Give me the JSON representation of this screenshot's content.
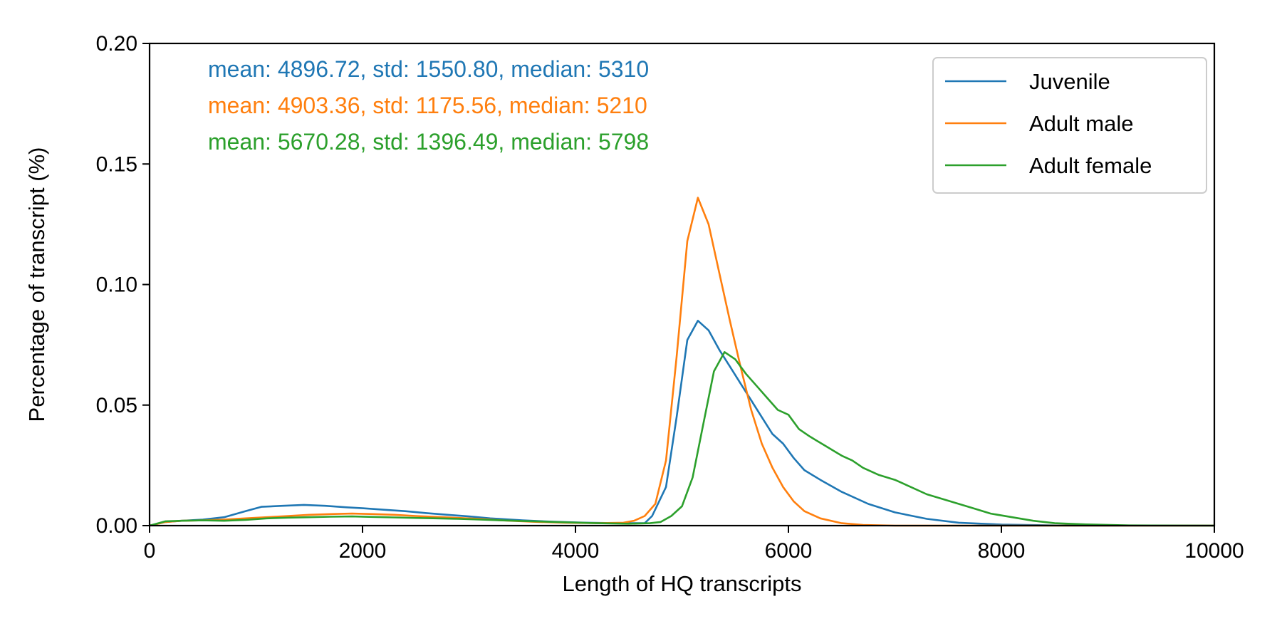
{
  "chart_data": {
    "type": "line",
    "title": "",
    "xlabel": "Length of HQ transcripts",
    "ylabel": "Percentage of transcript (%)",
    "xlim": [
      0,
      10000
    ],
    "ylim": [
      0,
      0.2
    ],
    "x_ticks": [
      0,
      2000,
      4000,
      6000,
      8000,
      10000
    ],
    "y_ticks": [
      0.0,
      0.05,
      0.1,
      0.15,
      0.2
    ],
    "x_tick_labels": [
      "0",
      "2000",
      "4000",
      "6000",
      "8000",
      "10000"
    ],
    "y_tick_labels": [
      "0.00",
      "0.05",
      "0.10",
      "0.15",
      "0.20"
    ],
    "grid": false,
    "legend_position": "top-right",
    "annotations": [
      {
        "text": "mean: 4896.72, std: 1550.80, median: 5310",
        "color": "#1f77b4"
      },
      {
        "text": "mean: 4903.36, std: 1175.56, median: 5210",
        "color": "#ff7f0e"
      },
      {
        "text": "mean: 5670.28, std: 1396.49, median: 5798",
        "color": "#2ca02c"
      }
    ],
    "series": [
      {
        "name": "Juvenile",
        "color": "#1f77b4",
        "points": [
          [
            0,
            0
          ],
          [
            150,
            0.0015
          ],
          [
            300,
            0.002
          ],
          [
            500,
            0.0025
          ],
          [
            700,
            0.0035
          ],
          [
            900,
            0.006
          ],
          [
            1050,
            0.0078
          ],
          [
            1250,
            0.0082
          ],
          [
            1450,
            0.0086
          ],
          [
            1650,
            0.0082
          ],
          [
            1850,
            0.0076
          ],
          [
            2000,
            0.0072
          ],
          [
            2200,
            0.0066
          ],
          [
            2400,
            0.006
          ],
          [
            2600,
            0.0052
          ],
          [
            2800,
            0.0045
          ],
          [
            3000,
            0.0038
          ],
          [
            3200,
            0.003
          ],
          [
            3500,
            0.0022
          ],
          [
            3800,
            0.0016
          ],
          [
            4100,
            0.0012
          ],
          [
            4400,
            0.001
          ],
          [
            4650,
            0.001
          ],
          [
            4720,
            0.004
          ],
          [
            4850,
            0.016
          ],
          [
            4950,
            0.045
          ],
          [
            5050,
            0.077
          ],
          [
            5150,
            0.085
          ],
          [
            5250,
            0.081
          ],
          [
            5350,
            0.073
          ],
          [
            5450,
            0.066
          ],
          [
            5550,
            0.059
          ],
          [
            5650,
            0.052
          ],
          [
            5750,
            0.045
          ],
          [
            5850,
            0.038
          ],
          [
            5950,
            0.034
          ],
          [
            6050,
            0.028
          ],
          [
            6150,
            0.023
          ],
          [
            6300,
            0.019
          ],
          [
            6500,
            0.014
          ],
          [
            6750,
            0.009
          ],
          [
            7000,
            0.0055
          ],
          [
            7300,
            0.0028
          ],
          [
            7600,
            0.0012
          ],
          [
            8000,
            0.0004
          ],
          [
            8500,
            0.0001
          ],
          [
            9000,
            0
          ],
          [
            10000,
            0
          ]
        ]
      },
      {
        "name": "Adult male",
        "color": "#ff7f0e",
        "points": [
          [
            0,
            0
          ],
          [
            150,
            0.0015
          ],
          [
            300,
            0.002
          ],
          [
            500,
            0.0022
          ],
          [
            700,
            0.0025
          ],
          [
            900,
            0.003
          ],
          [
            1100,
            0.0035
          ],
          [
            1300,
            0.004
          ],
          [
            1500,
            0.0045
          ],
          [
            1700,
            0.0048
          ],
          [
            1900,
            0.005
          ],
          [
            2100,
            0.0048
          ],
          [
            2300,
            0.0045
          ],
          [
            2500,
            0.004
          ],
          [
            2700,
            0.0036
          ],
          [
            2900,
            0.0032
          ],
          [
            3100,
            0.0028
          ],
          [
            3300,
            0.0022
          ],
          [
            3600,
            0.0016
          ],
          [
            3900,
            0.0012
          ],
          [
            4200,
            0.001
          ],
          [
            4450,
            0.0012
          ],
          [
            4550,
            0.002
          ],
          [
            4650,
            0.004
          ],
          [
            4750,
            0.009
          ],
          [
            4850,
            0.027
          ],
          [
            4950,
            0.07
          ],
          [
            5050,
            0.118
          ],
          [
            5150,
            0.136
          ],
          [
            5250,
            0.125
          ],
          [
            5350,
            0.105
          ],
          [
            5450,
            0.085
          ],
          [
            5550,
            0.066
          ],
          [
            5650,
            0.048
          ],
          [
            5750,
            0.034
          ],
          [
            5850,
            0.024
          ],
          [
            5950,
            0.016
          ],
          [
            6050,
            0.01
          ],
          [
            6150,
            0.006
          ],
          [
            6300,
            0.003
          ],
          [
            6500,
            0.001
          ],
          [
            6700,
            0.0003
          ],
          [
            7000,
            0
          ],
          [
            10000,
            0
          ]
        ]
      },
      {
        "name": "Adult female",
        "color": "#2ca02c",
        "points": [
          [
            0,
            0
          ],
          [
            150,
            0.0018
          ],
          [
            300,
            0.002
          ],
          [
            500,
            0.0022
          ],
          [
            700,
            0.002
          ],
          [
            900,
            0.0024
          ],
          [
            1100,
            0.003
          ],
          [
            1300,
            0.0033
          ],
          [
            1500,
            0.0035
          ],
          [
            1700,
            0.0037
          ],
          [
            1900,
            0.0038
          ],
          [
            2100,
            0.0036
          ],
          [
            2300,
            0.0034
          ],
          [
            2500,
            0.0032
          ],
          [
            2700,
            0.003
          ],
          [
            2900,
            0.0028
          ],
          [
            3100,
            0.0025
          ],
          [
            3300,
            0.0022
          ],
          [
            3600,
            0.0018
          ],
          [
            3900,
            0.0014
          ],
          [
            4200,
            0.001
          ],
          [
            4500,
            0.0008
          ],
          [
            4700,
            0.001
          ],
          [
            4800,
            0.0015
          ],
          [
            4900,
            0.004
          ],
          [
            5000,
            0.008
          ],
          [
            5100,
            0.02
          ],
          [
            5200,
            0.042
          ],
          [
            5300,
            0.064
          ],
          [
            5400,
            0.072
          ],
          [
            5500,
            0.069
          ],
          [
            5600,
            0.063
          ],
          [
            5700,
            0.058
          ],
          [
            5800,
            0.053
          ],
          [
            5900,
            0.048
          ],
          [
            6000,
            0.046
          ],
          [
            6100,
            0.04
          ],
          [
            6200,
            0.037
          ],
          [
            6350,
            0.033
          ],
          [
            6500,
            0.029
          ],
          [
            6600,
            0.027
          ],
          [
            6700,
            0.024
          ],
          [
            6850,
            0.021
          ],
          [
            7000,
            0.019
          ],
          [
            7150,
            0.016
          ],
          [
            7300,
            0.013
          ],
          [
            7450,
            0.011
          ],
          [
            7600,
            0.009
          ],
          [
            7750,
            0.007
          ],
          [
            7900,
            0.005
          ],
          [
            8100,
            0.0035
          ],
          [
            8300,
            0.002
          ],
          [
            8500,
            0.001
          ],
          [
            8800,
            0.0005
          ],
          [
            9200,
            0.0001
          ],
          [
            10000,
            0
          ]
        ]
      }
    ]
  }
}
